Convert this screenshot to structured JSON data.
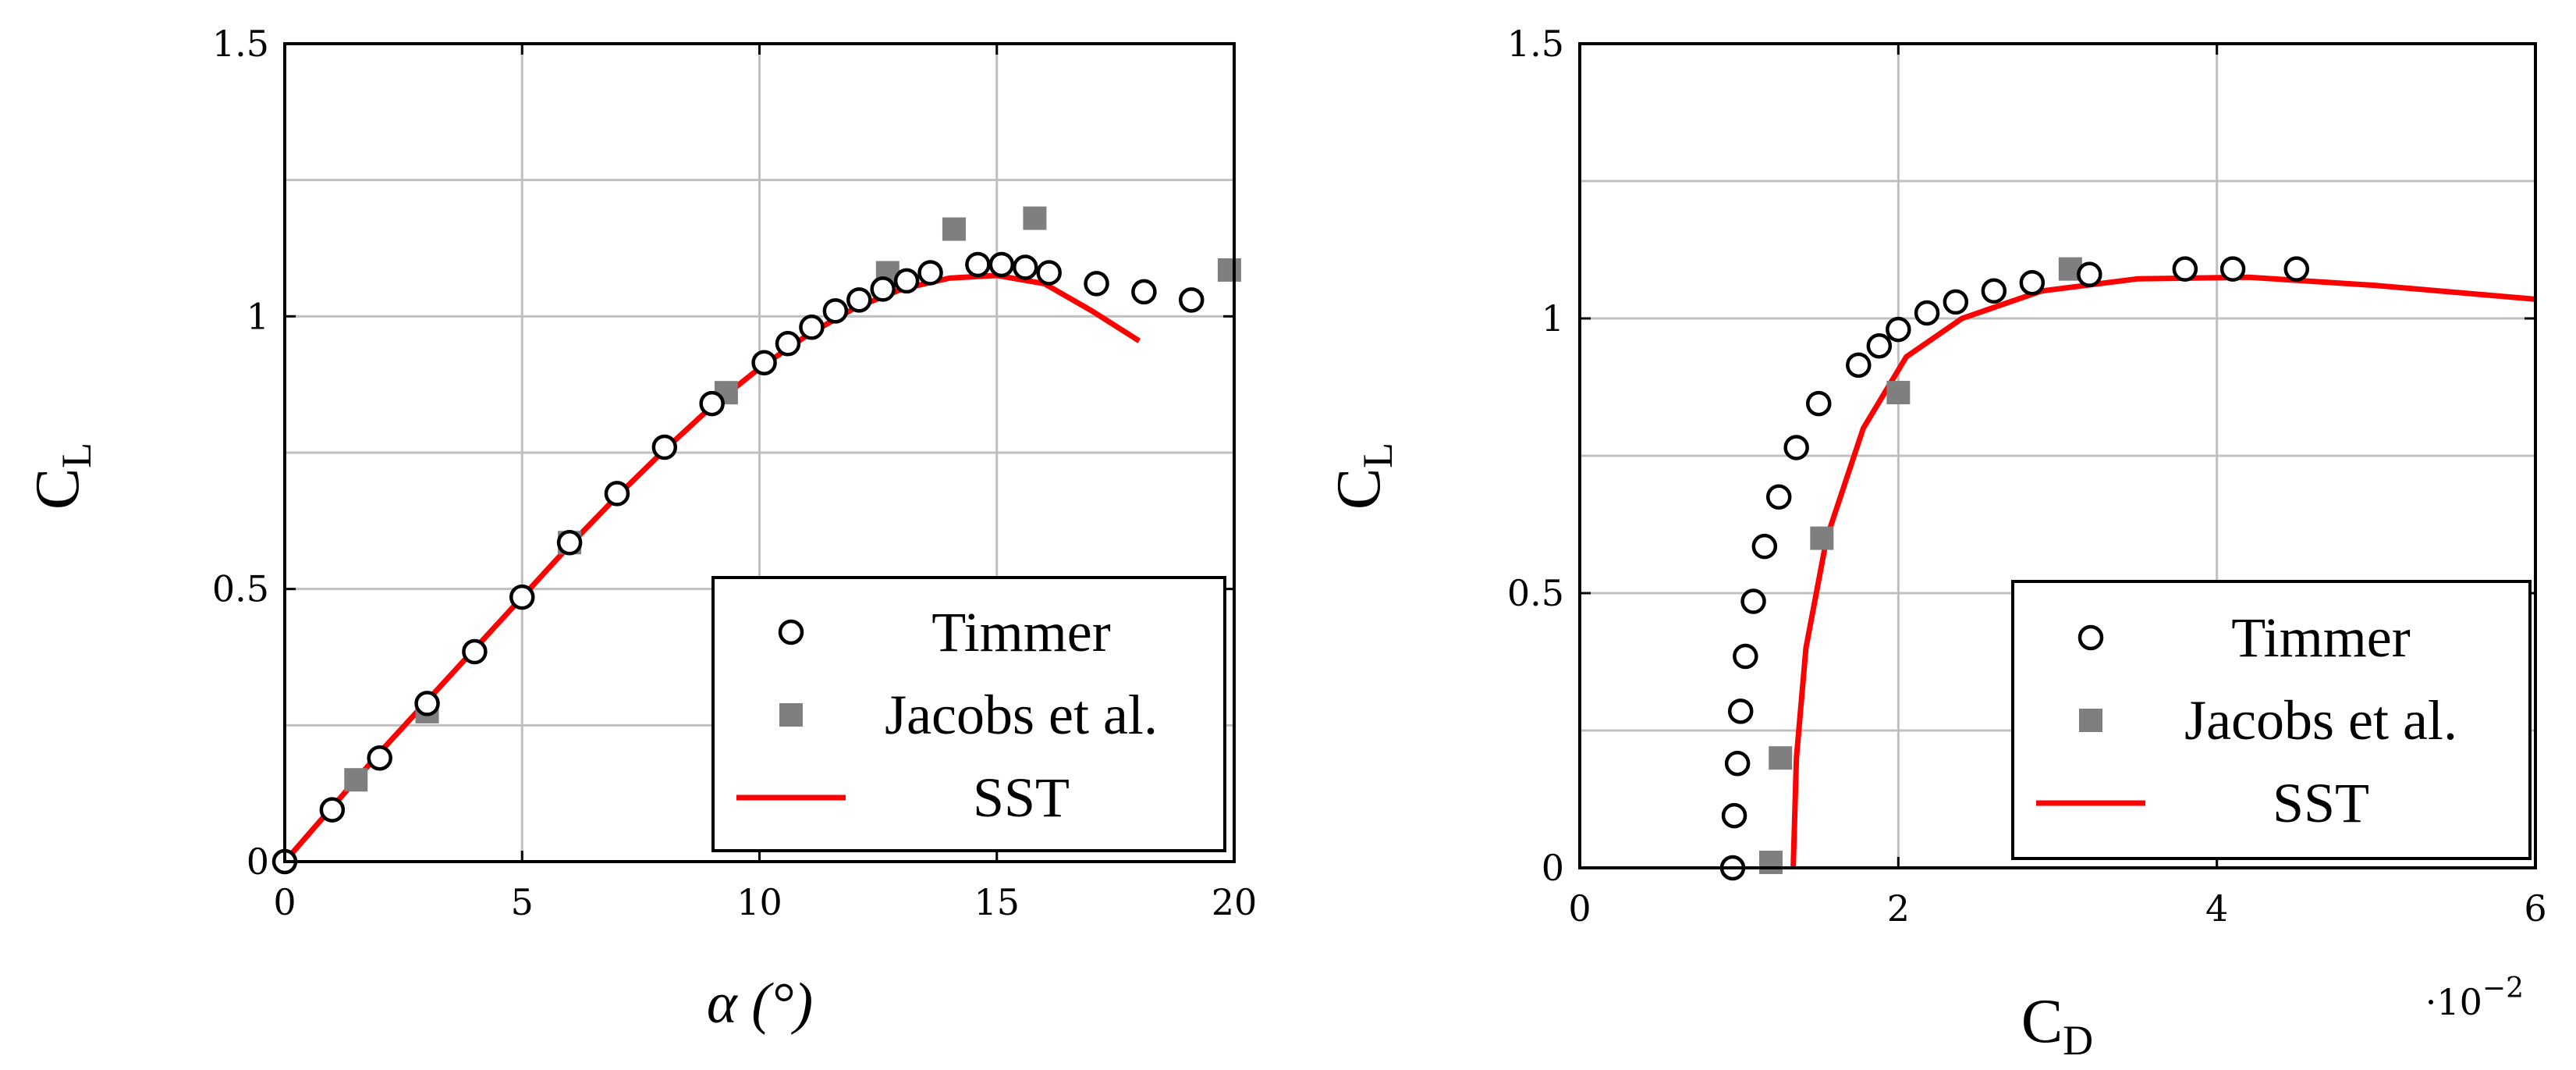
{
  "chart_data": [
    {
      "id": "cl-alpha",
      "type": "scatter",
      "title": "",
      "xlabel": "α (°)",
      "ylabel": "C_L",
      "ylabel_main": "C",
      "ylabel_sub": "L",
      "xlim": [
        0,
        20
      ],
      "ylim": [
        0,
        1.5
      ],
      "xticks": [
        0,
        5,
        10,
        15,
        20
      ],
      "xtick_labels": [
        "0",
        "5",
        "10",
        "15",
        "20"
      ],
      "yticks": [
        0,
        0.5,
        1,
        1.5
      ],
      "ytick_labels": [
        "0",
        "0.5",
        "1",
        "1.5"
      ],
      "gridlines_x": [
        0,
        5,
        10,
        15,
        20
      ],
      "gridlines_y": [
        0,
        0.25,
        0.5,
        0.75,
        1,
        1.25,
        1.5
      ],
      "grid": true,
      "legend_position": "bottom-right",
      "series": [
        {
          "name": "Timmer",
          "marker": "circle",
          "points": [
            [
              0,
              0
            ],
            [
              1,
              0.095
            ],
            [
              2,
              0.19
            ],
            [
              3,
              0.29
            ],
            [
              4,
              0.385
            ],
            [
              5,
              0.485
            ],
            [
              6,
              0.585
            ],
            [
              7,
              0.675
            ],
            [
              8,
              0.76
            ],
            [
              9,
              0.84
            ],
            [
              10.1,
              0.915
            ],
            [
              10.6,
              0.95
            ],
            [
              11.1,
              0.98
            ],
            [
              11.6,
              1.01
            ],
            [
              12.1,
              1.03
            ],
            [
              12.6,
              1.05
            ],
            [
              13.1,
              1.065
            ],
            [
              13.6,
              1.08
            ],
            [
              14.6,
              1.095
            ],
            [
              15.1,
              1.095
            ],
            [
              15.6,
              1.09
            ],
            [
              16.1,
              1.08
            ],
            [
              17.1,
              1.06
            ],
            [
              18.1,
              1.045
            ],
            [
              19.1,
              1.03
            ]
          ]
        },
        {
          "name": "Jacobs et al.",
          "marker": "square",
          "points": [
            [
              1.5,
              0.15
            ],
            [
              3,
              0.275
            ],
            [
              6,
              0.585
            ],
            [
              9.3,
              0.86
            ],
            [
              12.7,
              1.08
            ],
            [
              14.1,
              1.16
            ],
            [
              15.8,
              1.18
            ],
            [
              19.9,
              1.085
            ]
          ]
        },
        {
          "name": "SST",
          "marker": "line",
          "color": "#ff0000",
          "points": [
            [
              0,
              0
            ],
            [
              1,
              0.1
            ],
            [
              2,
              0.2
            ],
            [
              3,
              0.295
            ],
            [
              4,
              0.39
            ],
            [
              5,
              0.485
            ],
            [
              6,
              0.58
            ],
            [
              7,
              0.67
            ],
            [
              8,
              0.755
            ],
            [
              9,
              0.835
            ],
            [
              10,
              0.905
            ],
            [
              11,
              0.965
            ],
            [
              12,
              1.015
            ],
            [
              13,
              1.05
            ],
            [
              14,
              1.07
            ],
            [
              15,
              1.075
            ],
            [
              16,
              1.06
            ],
            [
              17,
              1.01
            ],
            [
              18,
              0.955
            ]
          ]
        }
      ]
    },
    {
      "id": "cl-cd",
      "type": "scatter",
      "title": "",
      "xlabel": "C_D",
      "xlabel_main": "C",
      "xlabel_sub": "D",
      "ylabel": "C_L",
      "ylabel_main": "C",
      "ylabel_sub": "L",
      "xscale_note": "·10",
      "xscale_exp": "−2",
      "xlim": [
        0,
        6
      ],
      "ylim": [
        0,
        1.5
      ],
      "xticks": [
        0,
        2,
        4,
        6
      ],
      "xtick_labels": [
        "0",
        "2",
        "4",
        "6"
      ],
      "yticks": [
        0,
        0.5,
        1,
        1.5
      ],
      "ytick_labels": [
        "0",
        "0.5",
        "1",
        "1.5"
      ],
      "gridlines_x": [
        0,
        2,
        4,
        6
      ],
      "gridlines_y": [
        0,
        0.25,
        0.5,
        0.75,
        1,
        1.25,
        1.5
      ],
      "grid": true,
      "legend_position": "bottom-right",
      "series": [
        {
          "name": "Timmer",
          "marker": "circle",
          "points": [
            [
              0.96,
              0
            ],
            [
              0.97,
              0.095
            ],
            [
              0.99,
              0.19
            ],
            [
              1.01,
              0.285
            ],
            [
              1.04,
              0.385
            ],
            [
              1.09,
              0.485
            ],
            [
              1.16,
              0.585
            ],
            [
              1.25,
              0.675
            ],
            [
              1.36,
              0.765
            ],
            [
              1.5,
              0.845
            ],
            [
              1.75,
              0.915
            ],
            [
              1.88,
              0.95
            ],
            [
              2.0,
              0.98
            ],
            [
              2.18,
              1.01
            ],
            [
              2.36,
              1.03
            ],
            [
              2.6,
              1.05
            ],
            [
              2.84,
              1.065
            ],
            [
              3.2,
              1.08
            ],
            [
              3.8,
              1.09
            ],
            [
              4.1,
              1.09
            ],
            [
              4.5,
              1.09
            ]
          ]
        },
        {
          "name": "Jacobs et al.",
          "marker": "square",
          "points": [
            [
              1.2,
              0.01
            ],
            [
              1.26,
              0.2
            ],
            [
              1.52,
              0.6
            ],
            [
              2.0,
              0.865
            ],
            [
              3.08,
              1.09
            ]
          ]
        },
        {
          "name": "SST",
          "marker": "line",
          "color": "#ff0000",
          "points": [
            [
              1.34,
              0
            ],
            [
              1.36,
              0.2
            ],
            [
              1.42,
              0.4
            ],
            [
              1.55,
              0.6
            ],
            [
              1.78,
              0.8
            ],
            [
              2.05,
              0.93
            ],
            [
              2.4,
              1.0
            ],
            [
              2.9,
              1.05
            ],
            [
              3.5,
              1.072
            ],
            [
              4.2,
              1.075
            ],
            [
              5.0,
              1.06
            ],
            [
              6.0,
              1.035
            ]
          ]
        }
      ]
    }
  ]
}
